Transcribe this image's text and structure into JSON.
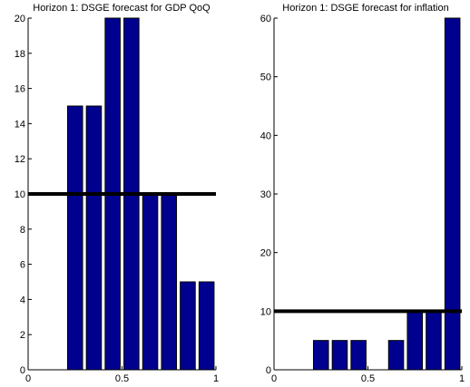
{
  "colors": {
    "bar_fill": "#00008F",
    "bar_edge": "#000000",
    "ref_line": "#000000",
    "axis": "#000000"
  },
  "chart_data": [
    {
      "type": "bar",
      "title": "Horizon 1: DSGE forecast for GDP QoQ",
      "xlabel": "",
      "ylabel": "",
      "x": [
        0.05,
        0.15,
        0.25,
        0.35,
        0.45,
        0.55,
        0.65,
        0.75,
        0.85,
        0.95
      ],
      "values": [
        0,
        0,
        15,
        15,
        20,
        20,
        10,
        10,
        5,
        5
      ],
      "xlim": [
        0,
        1
      ],
      "ylim": [
        0,
        20
      ],
      "xticks": [
        0,
        0.5,
        1
      ],
      "xtick_labels": [
        "0",
        "0.5",
        "1"
      ],
      "yticks": [
        0,
        2,
        4,
        6,
        8,
        10,
        12,
        14,
        16,
        18,
        20
      ],
      "ytick_labels": [
        "0",
        "2",
        "4",
        "6",
        "8",
        "10",
        "12",
        "14",
        "16",
        "18",
        "20"
      ],
      "reference_line": 10,
      "grid": false,
      "legend": "none"
    },
    {
      "type": "bar",
      "title": "Horizon 1: DSGE forecast for inflation",
      "xlabel": "",
      "ylabel": "",
      "x": [
        0.05,
        0.15,
        0.25,
        0.35,
        0.45,
        0.55,
        0.65,
        0.75,
        0.85,
        0.95
      ],
      "values": [
        0,
        0,
        5,
        5,
        5,
        0,
        5,
        10,
        10,
        60
      ],
      "xlim": [
        0,
        1
      ],
      "ylim": [
        0,
        60
      ],
      "xticks": [
        0,
        0.5,
        1
      ],
      "xtick_labels": [
        "0",
        "0.5",
        "1"
      ],
      "yticks": [
        0,
        10,
        20,
        30,
        40,
        50,
        60
      ],
      "ytick_labels": [
        "0",
        "10",
        "20",
        "30",
        "40",
        "50",
        "60"
      ],
      "reference_line": 10,
      "grid": false,
      "legend": "none"
    }
  ]
}
